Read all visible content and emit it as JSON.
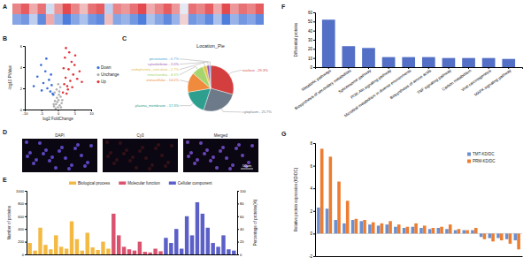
{
  "panels": [
    "A",
    "B",
    "C",
    "D",
    "E",
    "F",
    "G"
  ],
  "images": {
    "labels": [
      "DAPI",
      "Cy3",
      "Merged"
    ],
    "scale_bar": "50μm"
  },
  "chart_data": [
    {
      "type": "heatmap",
      "tick_labels": false,
      "zlim": [
        -1,
        1
      ],
      "cells": [
        [
          0.6,
          0.8,
          0.4,
          0.7,
          -0.2,
          0.5,
          0.9,
          0.6,
          0.3,
          0.7,
          0.8,
          -0.3,
          0.6,
          0.5,
          0.7,
          0.9,
          0.4,
          0.6,
          0.8,
          0.5,
          -0.1,
          0.7,
          0.6,
          0.8,
          0.4,
          0.9,
          0.5,
          0.7,
          0.6,
          0.8
        ],
        [
          -0.6,
          -0.7,
          -0.3,
          -0.8,
          0.4,
          -0.5,
          -0.9,
          -0.6,
          -0.4,
          -0.7,
          -0.8,
          0.3,
          -0.6,
          -0.5,
          -0.7,
          -0.9,
          -0.4,
          -0.6,
          -0.8,
          -0.5,
          0.2,
          -0.7,
          -0.6,
          -0.8,
          -0.4,
          -0.9,
          -0.5,
          -0.7,
          -0.6,
          -0.8
        ]
      ]
    },
    {
      "type": "scatter",
      "xlabel": "log2 FoldChange",
      "ylabel": "-log10 PValue",
      "xlim": [
        -10,
        10
      ],
      "xticks": [
        -10,
        -5,
        0,
        5,
        10
      ],
      "ylim": [
        0,
        6
      ],
      "yticks": [
        0,
        2,
        4,
        6
      ],
      "legend": "right",
      "marker": "circle",
      "series": [
        {
          "name": "Down",
          "color": "#3b6fd8",
          "x": [
            -6.2,
            -5.1,
            -4.4,
            -3.8,
            -3.2,
            -2.7,
            -2.3,
            -1.9,
            -1.6,
            -4.9,
            -3.5,
            -2.1,
            -7.3,
            -1.4
          ],
          "values": [
            3.1,
            4.2,
            2.5,
            3.6,
            2.0,
            2.8,
            1.7,
            2.3,
            1.5,
            1.8,
            4.8,
            3.3,
            2.2,
            1.4
          ]
        },
        {
          "name": "Unchange",
          "color": "#b0b0b0",
          "x": [
            -1.2,
            -0.9,
            -0.6,
            -0.3,
            0,
            0.2,
            0.5,
            0.8,
            1.1,
            -1.0,
            -0.4,
            0.3,
            0.7,
            -0.7,
            0.1,
            0.9,
            -0.2,
            0.4,
            1.3,
            -1.3
          ],
          "values": [
            0.3,
            0.8,
            0.5,
            1.1,
            0.2,
            0.9,
            0.4,
            1.2,
            0.6,
            1.6,
            1.9,
            1.4,
            2.1,
            0.1,
            2.4,
            0.2,
            0.7,
            1.7,
            0.9,
            0.5
          ]
        },
        {
          "name": "Up",
          "color": "#e0373c",
          "x": [
            1.5,
            1.9,
            2.3,
            2.8,
            3.2,
            3.7,
            4.1,
            4.6,
            5.2,
            5.8,
            6.5,
            2.1,
            2.6,
            3.4,
            4.3,
            1.7,
            3.0,
            5.0,
            7.2,
            2.4
          ],
          "values": [
            1.6,
            2.4,
            3.0,
            2.2,
            3.8,
            2.7,
            4.5,
            3.3,
            5.1,
            2.9,
            3.6,
            4.9,
            1.5,
            5.4,
            2.1,
            3.9,
            1.9,
            4.2,
            2.6,
            5.8
          ]
        }
      ]
    },
    {
      "type": "pie",
      "title": "Location_Pie",
      "data_labels": true,
      "values": [
        29.3,
        25.7,
        17.3,
        14.0,
        8.3,
        2.7,
        2.0,
        0.7
      ],
      "value_labels": [
        "nucleus - 29.3%",
        "cytoplasm - 25.7%",
        "plasma_membrane - 17.3%",
        "extracellular - 14.0%",
        "mitochondria - 8.3%",
        "endoplasmic_reticulum - 2.7%",
        "cytoskeleton - 2.0%",
        "peroxisome - 0.7%"
      ],
      "colors": [
        "#d33f3f",
        "#6c7a89",
        "#2e9e8f",
        "#f08a3c",
        "#a6d56e",
        "#e6c24a",
        "#9b59b6",
        "#4aa3df"
      ]
    },
    {
      "type": "bar",
      "ylabel": "Number of proteins",
      "y2label": "Percentage of proteins(%)",
      "ylim": [
        0,
        1000
      ],
      "yticks": [
        0,
        200,
        400,
        600,
        800,
        1000
      ],
      "y2lim": [
        0,
        100
      ],
      "y2ticks": [
        0,
        20,
        40,
        60,
        80,
        100
      ],
      "legend": "top",
      "categories": [
        null,
        null,
        null,
        null,
        null,
        null,
        null,
        null,
        null,
        null,
        null,
        null,
        null,
        null,
        null,
        null,
        null,
        null,
        null,
        null,
        null,
        null,
        null,
        null,
        null,
        null,
        null,
        null,
        null,
        null,
        null,
        null,
        null,
        null,
        null,
        null,
        null,
        null,
        null,
        null
      ],
      "series": [
        {
          "name": "Biological process",
          "color": "#f4b942",
          "values": [
            180,
            60,
            420,
            150,
            80,
            300,
            120,
            90,
            520,
            240,
            60,
            340,
            110,
            70,
            200,
            90,
            null,
            null,
            null,
            null,
            null,
            null,
            null,
            null,
            null,
            null,
            null,
            null,
            null,
            null,
            null,
            null,
            null,
            null,
            null,
            null,
            null,
            null,
            null,
            null
          ]
        },
        {
          "name": "Molecular function",
          "color": "#d9536f",
          "values": [
            null,
            null,
            null,
            null,
            null,
            null,
            null,
            null,
            null,
            null,
            null,
            null,
            null,
            null,
            null,
            null,
            640,
            300,
            120,
            80,
            60,
            200,
            40,
            30,
            90,
            50,
            null,
            null,
            null,
            null,
            null,
            null,
            null,
            null,
            null,
            null,
            null,
            null,
            null,
            null
          ]
        },
        {
          "name": "Cellular component",
          "color": "#5b5fc7",
          "values": [
            null,
            null,
            null,
            null,
            null,
            null,
            null,
            null,
            null,
            null,
            null,
            null,
            null,
            null,
            null,
            null,
            null,
            null,
            null,
            null,
            null,
            null,
            null,
            null,
            null,
            null,
            260,
            180,
            400,
            90,
            600,
            300,
            820,
            640,
            420,
            180,
            120,
            300,
            80,
            60
          ]
        }
      ]
    },
    {
      "type": "bar",
      "ylabel": "Differential proteins",
      "color": "#5470c6",
      "ylim": [
        0,
        60
      ],
      "yticks": [
        0,
        10,
        20,
        30,
        40,
        50,
        60
      ],
      "categories": [
        "Metabolic pathways",
        "Biosynthesis of secondary metabolites",
        "Spliceosome pathway",
        "PI3K-Akt signaling pathway",
        "Microbial metabolism in diverse environments",
        "Biosynthesis of amino acids",
        "TNF signaling pathway",
        "Carbon metabolism",
        "Viral carcinogenesis",
        "MAPK signaling pathway"
      ],
      "values": [
        52,
        23,
        21,
        11,
        11,
        11,
        10,
        10,
        10,
        9
      ]
    },
    {
      "type": "bar",
      "ylabel": "Relative protein expression (KD/DC)",
      "legend": "top-right",
      "ylim": [
        -2,
        8
      ],
      "yticks": [
        -2,
        0,
        2,
        4,
        6,
        8
      ],
      "categories": [
        null,
        null,
        null,
        null,
        null,
        null,
        null,
        null,
        null,
        null,
        null,
        null,
        null,
        null,
        null,
        null,
        null,
        null,
        null,
        null,
        null,
        null,
        null,
        null
      ],
      "series": [
        {
          "name": "TMT-KD/DC",
          "color": "#6b8fd0",
          "values": [
            2.3,
            2.2,
            1.2,
            0.9,
            1.2,
            1.1,
            0.8,
            0.7,
            0.8,
            0.6,
            0.5,
            0.6,
            0.5,
            0.4,
            0.5,
            0.4,
            0.3,
            0.3,
            0.3,
            -0.3,
            -0.4,
            -0.4,
            -0.5,
            -0.6
          ]
        },
        {
          "name": "PRM-KD/DC",
          "color": "#ed7d31",
          "values": [
            7.5,
            6.8,
            4.6,
            2.9,
            1.3,
            1.2,
            1.0,
            0.9,
            1.1,
            0.8,
            0.6,
            0.9,
            0.7,
            0.5,
            0.6,
            0.8,
            0.4,
            0.3,
            0.5,
            -0.5,
            -0.7,
            -0.6,
            -0.9,
            -1.4
          ]
        }
      ]
    }
  ]
}
